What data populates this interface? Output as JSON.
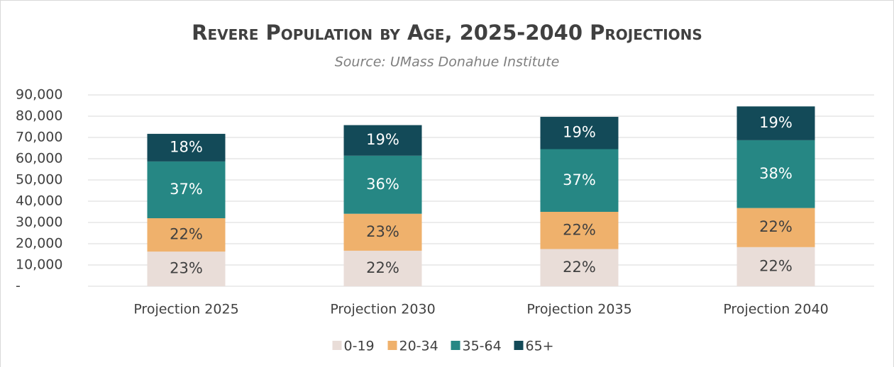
{
  "chart_data": {
    "type": "stacked_bar",
    "title": "Revere Population by Age, 2025-2040 Projections",
    "subtitle": "Source: UMass Donahue Institute",
    "categories": [
      "Projection 2025",
      "Projection 2030",
      "Projection 2035",
      "Projection 2040"
    ],
    "series": [
      {
        "name": "0-19",
        "color": "#e9ddd8",
        "values": [
          16300,
          16700,
          17500,
          18400
        ],
        "value_labels": [
          "23%",
          "22%",
          "22%",
          "22%"
        ]
      },
      {
        "name": "20-34",
        "color": "#efb16c",
        "values": [
          15700,
          17400,
          17500,
          18400
        ],
        "value_labels": [
          "22%",
          "23%",
          "22%",
          "22%"
        ]
      },
      {
        "name": "35-64",
        "color": "#268784",
        "values": [
          26700,
          27300,
          29500,
          31900
        ],
        "value_labels": [
          "37%",
          "36%",
          "37%",
          "38%"
        ]
      },
      {
        "name": "65+",
        "color": "#134a58",
        "values": [
          13000,
          14400,
          15200,
          15900
        ],
        "value_labels": [
          "18%",
          "19%",
          "19%",
          "19%"
        ]
      }
    ],
    "ylim": [
      0,
      90000
    ],
    "yticks": [
      {
        "value": 0,
        "label": "-"
      },
      {
        "value": 10000,
        "label": "10,000"
      },
      {
        "value": 20000,
        "label": "20,000"
      },
      {
        "value": 30000,
        "label": "30,000"
      },
      {
        "value": 40000,
        "label": "40,000"
      },
      {
        "value": 50000,
        "label": "50,000"
      },
      {
        "value": 60000,
        "label": "60,000"
      },
      {
        "value": 70000,
        "label": "70,000"
      },
      {
        "value": 80000,
        "label": "80,000"
      },
      {
        "value": 90000,
        "label": "90,000"
      }
    ],
    "grid": true,
    "legend": "bottom"
  }
}
